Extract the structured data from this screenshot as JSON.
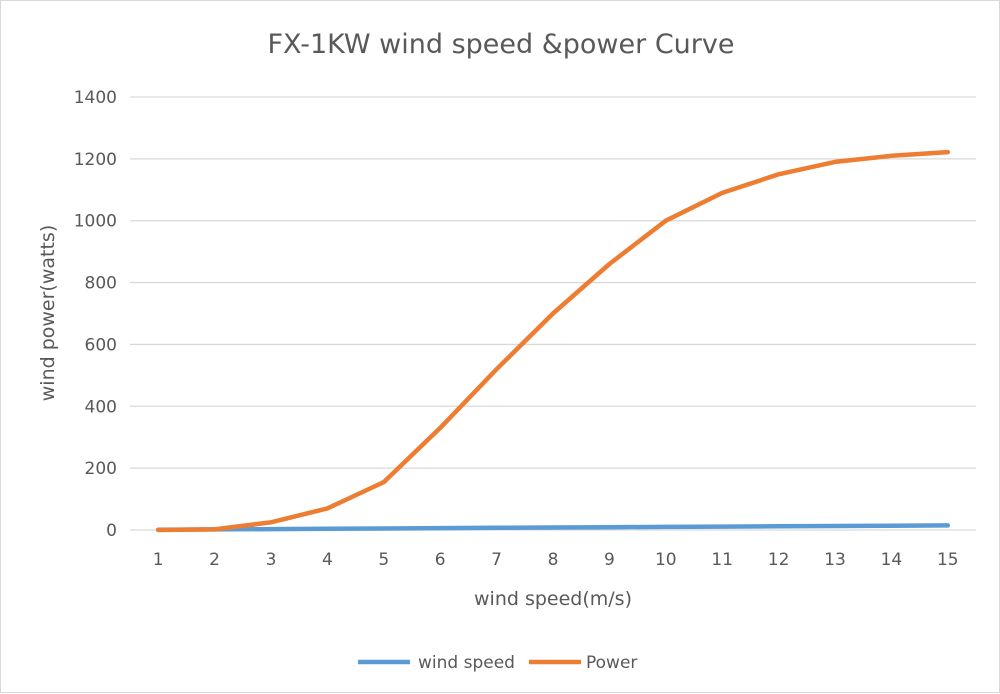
{
  "chart_data": {
    "type": "line",
    "title": "FX-1KW wind speed &power Curve",
    "xlabel": "wind speed(m/s)",
    "ylabel": "wind power(watts)",
    "categories": [
      "1",
      "2",
      "3",
      "4",
      "5",
      "6",
      "7",
      "8",
      "9",
      "10",
      "11",
      "12",
      "13",
      "14",
      "15"
    ],
    "ylim": [
      0,
      1400
    ],
    "yticks": [
      0,
      200,
      400,
      600,
      800,
      1000,
      1200,
      1400
    ],
    "grid": true,
    "legend_position": "bottom",
    "series": [
      {
        "name": "wind speed",
        "color": "#5b9bd5",
        "values": [
          1,
          2,
          3,
          4,
          5,
          6,
          7,
          8,
          9,
          10,
          11,
          12,
          13,
          14,
          15
        ]
      },
      {
        "name": "Power",
        "color": "#ed7d31",
        "values": [
          0,
          2,
          25,
          70,
          155,
          330,
          520,
          700,
          860,
          1000,
          1090,
          1150,
          1190,
          1210,
          1222
        ]
      }
    ]
  }
}
